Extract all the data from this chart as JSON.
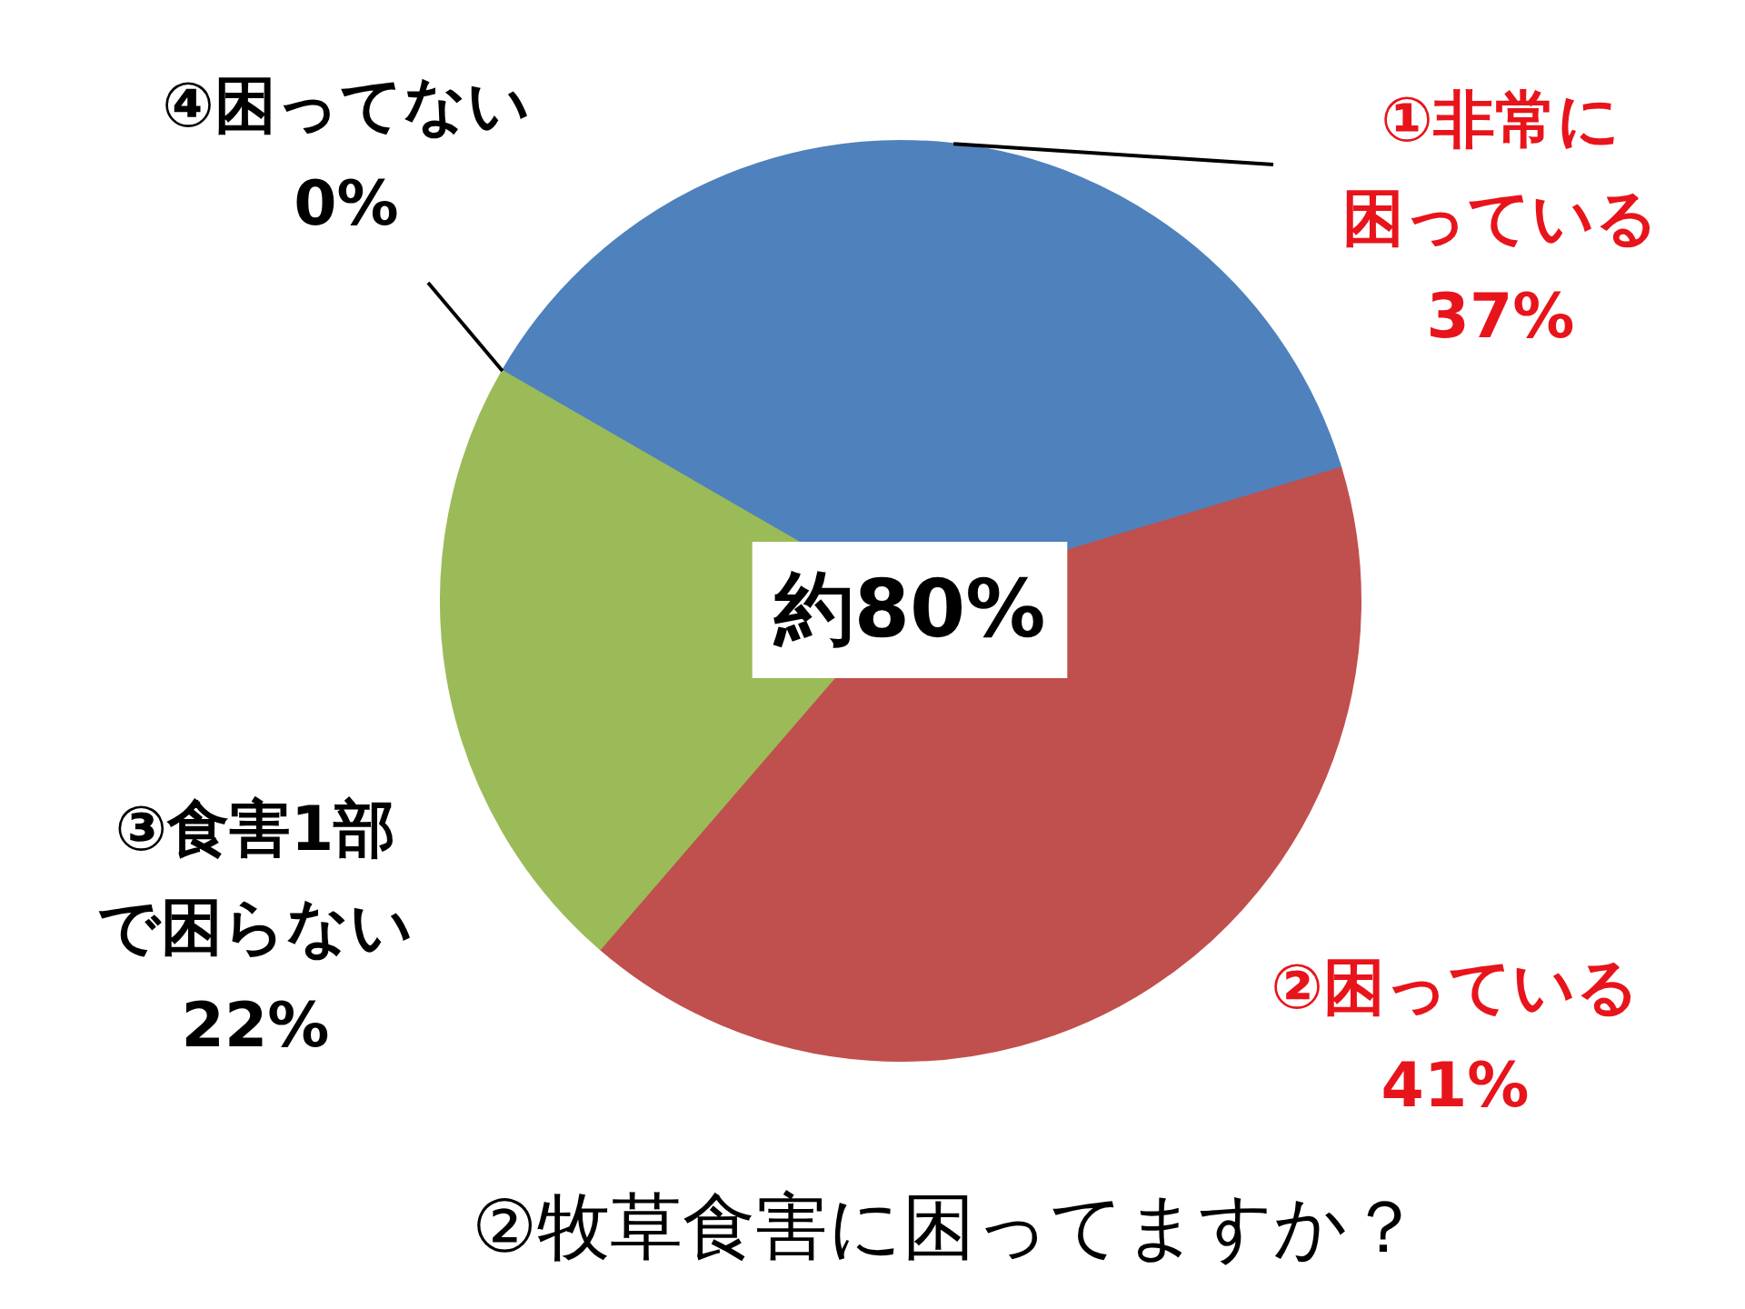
{
  "chart_data": {
    "type": "pie",
    "title": "②牧草食害に困ってますか？",
    "categories": [
      "①非常に困っている",
      "②困っている",
      "③食害1部で困らない",
      "④困ってない"
    ],
    "values": [
      37,
      41,
      22,
      0
    ],
    "colors": [
      "#4f81bd",
      "#c0504d",
      "#9bbb59",
      "#8064a2"
    ],
    "value_labels": [
      "37%",
      "41%",
      "22%",
      "0%"
    ],
    "annotations": [
      "約80%"
    ]
  }
}
